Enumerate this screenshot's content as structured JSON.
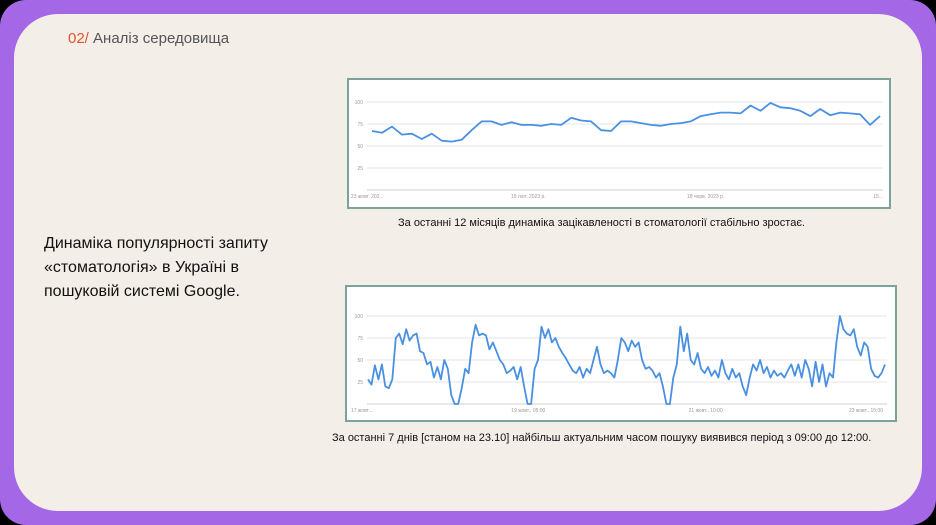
{
  "header": {
    "number": "02/",
    "title": "Аналіз середовища"
  },
  "left_text": "Динаміка популярності запиту «стоматологія» в Україні в пошуковій системі Google.",
  "captions": {
    "chart1": "За останні 12 місяців динаміка зацікавленості в стоматології стабільно зростає.",
    "chart2": "За останні 7 днів [станом на 23.10] найбільш актуальним часом пошуку виявився період з 09:00 до 12:00."
  },
  "colors": {
    "line": "#4a90e2",
    "accent": "#e0532f",
    "frame": "#a468e6",
    "border": "#7aa39b"
  },
  "chart_data": [
    {
      "type": "line",
      "ylim": [
        0,
        100
      ],
      "yticks": [
        25,
        50,
        75,
        100
      ],
      "xtick_labels": [
        "23 жовт. 202...",
        "19 лют. 2023 р.",
        "18 черв. 2023 р.",
        "15..."
      ],
      "series": [
        {
          "values": [
            67,
            65,
            72,
            63,
            64,
            58,
            64,
            56,
            55,
            57,
            68,
            78,
            78,
            74,
            77,
            74,
            74,
            73,
            75,
            74,
            82,
            79,
            78,
            68,
            67,
            78,
            78,
            76,
            74,
            73,
            75,
            76,
            78,
            84,
            86,
            88,
            88,
            87,
            96,
            90,
            99,
            94,
            93,
            90,
            84,
            92,
            85,
            88,
            87,
            86,
            74,
            84
          ]
        }
      ]
    },
    {
      "type": "line",
      "ylim": [
        0,
        100
      ],
      "yticks": [
        25,
        50,
        75,
        100
      ],
      "xtick_labels": [
        "17 жовт...",
        "19 жовт., 05:00",
        "21 жовт., 10:00",
        "23 жовт., 15:00"
      ],
      "series": [
        {
          "values": [
            28,
            22,
            44,
            28,
            45,
            20,
            18,
            28,
            75,
            80,
            68,
            85,
            72,
            78,
            80,
            60,
            58,
            45,
            48,
            30,
            42,
            28,
            50,
            40,
            10,
            0,
            0,
            18,
            40,
            35,
            70,
            90,
            78,
            80,
            78,
            62,
            70,
            60,
            50,
            45,
            35,
            38,
            42,
            28,
            42,
            20,
            0,
            0,
            40,
            50,
            88,
            75,
            85,
            70,
            75,
            65,
            58,
            52,
            45,
            38,
            35,
            42,
            30,
            40,
            35,
            50,
            65,
            45,
            35,
            38,
            35,
            30,
            50,
            75,
            70,
            60,
            72,
            65,
            70,
            50,
            40,
            42,
            38,
            30,
            35,
            20,
            0,
            0,
            30,
            45,
            88,
            60,
            80,
            50,
            45,
            58,
            40,
            35,
            42,
            32,
            38,
            30,
            50,
            35,
            28,
            40,
            30,
            35,
            20,
            10,
            30,
            45,
            38,
            50,
            35,
            42,
            30,
            38,
            32,
            35,
            30,
            38,
            45,
            32,
            45,
            30,
            50,
            40,
            20,
            48,
            25,
            45,
            20,
            35,
            30,
            70,
            100,
            85,
            80,
            78,
            85,
            65,
            55,
            70,
            65,
            40,
            32,
            30,
            35,
            45
          ]
        }
      ]
    }
  ]
}
